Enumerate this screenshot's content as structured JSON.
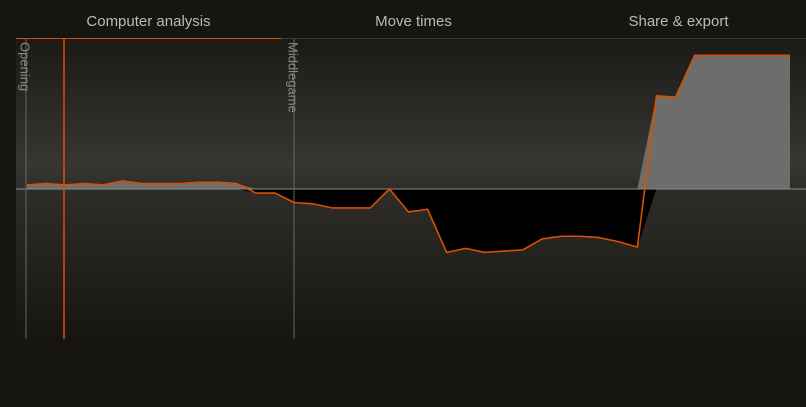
{
  "tabs": [
    {
      "label": "Computer analysis",
      "active": true
    },
    {
      "label": "Move times",
      "active": false
    },
    {
      "label": "Share & export",
      "active": false
    }
  ],
  "chart_data": {
    "type": "area",
    "phase_labels": [
      "Opening",
      "Middlegame"
    ],
    "ylim": [
      -1,
      1
    ],
    "current_move_index": 2,
    "values": [
      0.03,
      0.04,
      0.03,
      0.04,
      0.03,
      0.06,
      0.04,
      0.04,
      0.04,
      0.05,
      0.05,
      0.04,
      -0.03,
      -0.03,
      -0.1,
      -0.11,
      -0.14,
      -0.14,
      -0.14,
      0.0,
      -0.17,
      -0.15,
      -0.47,
      -0.44,
      -0.47,
      -0.46,
      -0.45,
      -0.37,
      -0.35,
      -0.35,
      -0.36,
      -0.39,
      -0.43,
      0.69,
      0.68,
      0.99,
      0.99,
      0.99,
      0.99,
      0.99,
      0.99
    ],
    "opening_start": 0,
    "middlegame_start": 14
  },
  "colors": {
    "line": "#d85000",
    "white_fill": "#6e6d6b",
    "black_fill": "#000000",
    "grid": "#555555"
  }
}
